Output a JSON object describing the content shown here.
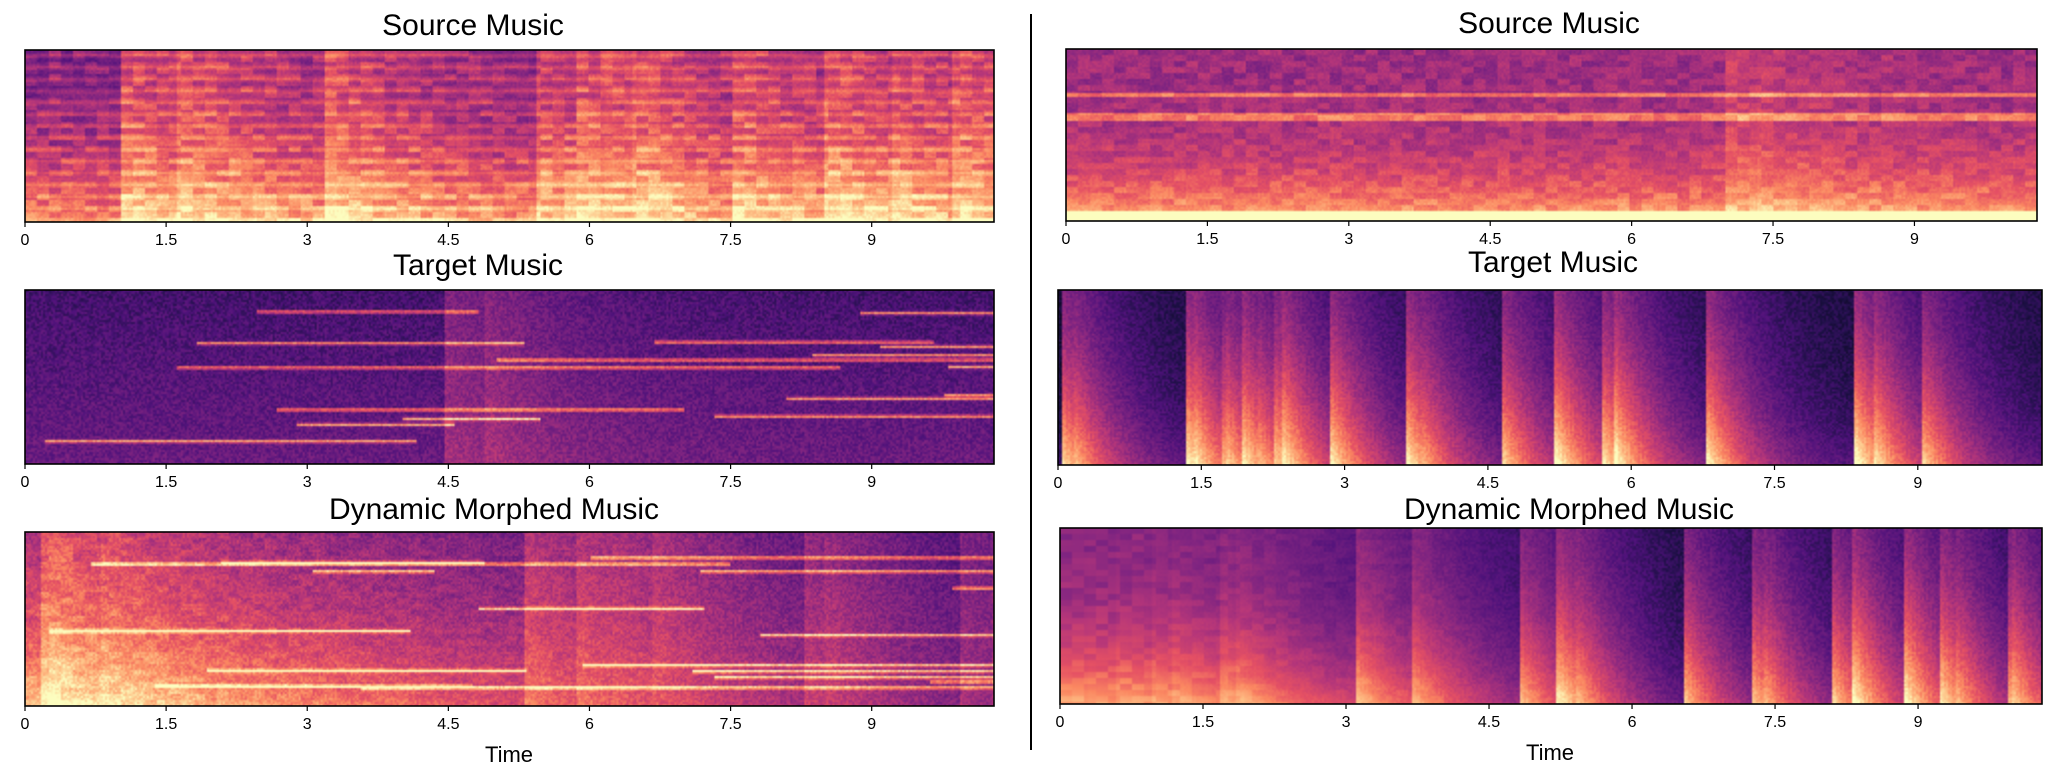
{
  "figure": {
    "columns": [
      {
        "panels": [
          {
            "title": "Source Music",
            "style": "dense"
          },
          {
            "title": "Target Music",
            "style": "harmonic"
          },
          {
            "title": "Dynamic Morphed Music",
            "style": "morphHarmonic"
          }
        ],
        "xlabel": "Time"
      },
      {
        "panels": [
          {
            "title": "Source Music",
            "style": "ambient"
          },
          {
            "title": "Target Music",
            "style": "percussive"
          },
          {
            "title": "Dynamic Morphed Music",
            "style": "morphPercussive"
          }
        ],
        "xlabel": "Time"
      }
    ],
    "colormap": "magma"
  },
  "chart_data": [
    {
      "type": "heatmap",
      "title": "Source Music",
      "xlabel": "",
      "xlim": [
        0,
        10.3
      ],
      "xticks": [
        0,
        1.5,
        3,
        4.5,
        6,
        7.5,
        9
      ],
      "xtick_labels": [
        "0",
        "1.5",
        "3",
        "4.5",
        "6",
        "7.5",
        "9"
      ],
      "colormap": "magma"
    },
    {
      "type": "heatmap",
      "title": "Target Music",
      "xlabel": "",
      "xlim": [
        0,
        10.3
      ],
      "xticks": [
        0,
        1.5,
        3,
        4.5,
        6,
        7.5,
        9
      ],
      "xtick_labels": [
        "0",
        "1.5",
        "3",
        "4.5",
        "6",
        "7.5",
        "9"
      ],
      "colormap": "magma"
    },
    {
      "type": "heatmap",
      "title": "Dynamic Morphed Music",
      "xlabel": "Time",
      "xlim": [
        0,
        10.3
      ],
      "xticks": [
        0,
        1.5,
        3,
        4.5,
        6,
        7.5,
        9
      ],
      "xtick_labels": [
        "0",
        "1.5",
        "3",
        "4.5",
        "6",
        "7.5",
        "9"
      ],
      "colormap": "magma"
    },
    {
      "type": "heatmap",
      "title": "Source Music",
      "xlabel": "",
      "xlim": [
        0,
        10.3
      ],
      "xticks": [
        0,
        1.5,
        3,
        4.5,
        6,
        7.5,
        9
      ],
      "xtick_labels": [
        "0",
        "1.5",
        "3",
        "4.5",
        "6",
        "7.5",
        "9"
      ],
      "colormap": "magma"
    },
    {
      "type": "heatmap",
      "title": "Target Music",
      "xlabel": "",
      "xlim": [
        0,
        10.3
      ],
      "xticks": [
        0,
        1.5,
        3,
        4.5,
        6,
        7.5,
        9
      ],
      "xtick_labels": [
        "0",
        "1.5",
        "3",
        "4.5",
        "6",
        "7.5",
        "9"
      ],
      "colormap": "magma"
    },
    {
      "type": "heatmap",
      "title": "Dynamic Morphed Music",
      "xlabel": "Time",
      "xlim": [
        0,
        10.3
      ],
      "xticks": [
        0,
        1.5,
        3,
        4.5,
        6,
        7.5,
        9
      ],
      "xtick_labels": [
        "0",
        "1.5",
        "3",
        "4.5",
        "6",
        "7.5",
        "9"
      ],
      "colormap": "magma"
    }
  ]
}
